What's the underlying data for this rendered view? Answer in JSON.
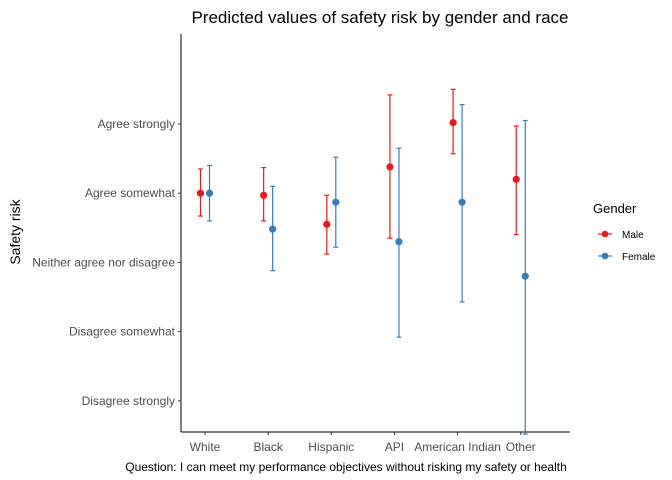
{
  "chart_data": {
    "type": "scatter",
    "title": "Predicted values of safety risk by gender and race",
    "xlabel": "Question: I can meet my performance objectives without risking my safety or health",
    "ylabel": "Safety risk",
    "categories": [
      "White",
      "Black",
      "Hispanic",
      "API",
      "American Indian",
      "Other"
    ],
    "y_tick_values": [
      1,
      2,
      3,
      4,
      5
    ],
    "y_tick_labels": [
      "Disagree strongly",
      "Disagree somewhat",
      "Neither agree nor disagree",
      "Agree somewhat",
      "Agree strongly"
    ],
    "ylim": [
      0.55,
      6.3
    ],
    "legend_title": "Gender",
    "legend_position": "right",
    "grid": false,
    "series": [
      {
        "name": "Male",
        "color": "#e41a1c",
        "values": [
          4.0,
          3.97,
          3.55,
          4.38,
          5.02,
          4.2
        ],
        "lower": [
          3.67,
          3.6,
          3.12,
          3.35,
          4.57,
          3.4
        ],
        "upper": [
          4.35,
          4.37,
          3.97,
          5.42,
          5.5,
          4.97
        ]
      },
      {
        "name": "Female",
        "color": "#377eb8",
        "values": [
          4.0,
          3.48,
          3.87,
          3.3,
          3.87,
          2.8
        ],
        "lower": [
          3.6,
          2.88,
          3.22,
          1.92,
          2.43,
          0.52
        ],
        "upper": [
          4.4,
          4.1,
          4.52,
          4.65,
          5.28,
          5.05
        ]
      }
    ]
  }
}
